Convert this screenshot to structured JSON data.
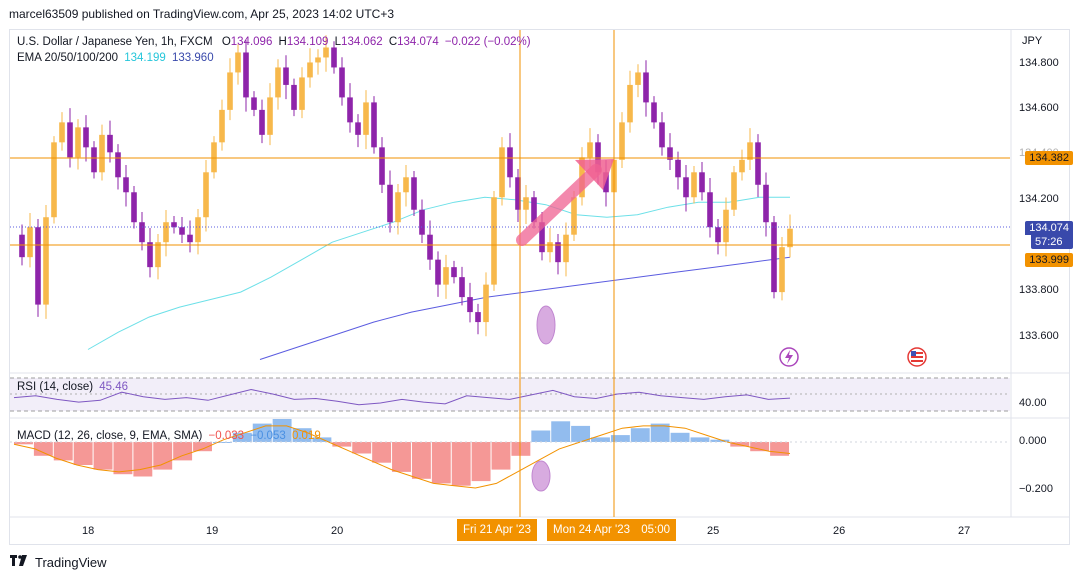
{
  "header": {
    "published_line": "marcel63509 published on TradingView.com, Apr 25, 2023 14:02 UTC+3"
  },
  "legend": {
    "symbol": "U.S. Dollar / Japanese Yen, 1h, FXCM",
    "open_label": "O",
    "open": "134.096",
    "high_label": "H",
    "high": "134.109",
    "low_label": "L",
    "low": "134.062",
    "close_label": "C",
    "close": "134.074",
    "change": "−0.022 (−0.02%)",
    "ema_label": "EMA 20/50/100/200",
    "ema_v1": "134.199",
    "ema_v2": "133.960",
    "rsi_label": "RSI (14, close)",
    "rsi_value": "45.46",
    "macd_label": "MACD (12, 26, close, 9, EMA, SMA)",
    "macd_v1": "−0.033",
    "macd_v2": "−0.053",
    "macd_v3": "0.019"
  },
  "price_axis": {
    "currency": "JPY",
    "ticks": [
      "134.800",
      "134.600",
      "134.400",
      "134.200",
      "133.800",
      "133.600"
    ],
    "last_price": "134.074",
    "countdown": "57:26",
    "level_upper": "134.382",
    "level_lower": "133.999"
  },
  "rsi_axis": {
    "ticks": [
      "40.00"
    ]
  },
  "macd_axis": {
    "ticks": [
      "0.000",
      "−0.200"
    ]
  },
  "time_axis": {
    "ticks": [
      "18",
      "19",
      "20",
      "25",
      "26",
      "27"
    ],
    "cursor_1": "Fri 21 Apr '23",
    "cursor_2": "Mon 24 Apr '23",
    "cursor_2_time": "05:00"
  },
  "footer": {
    "brand": "TradingView"
  },
  "colors": {
    "up": "#f7b84b",
    "down": "#8e24aa",
    "ema_a": "#6ce0e8",
    "ema_b": "#5b5ce0",
    "level": "#f29200",
    "arrow": "#f06292",
    "rsi": "#7e57c2",
    "macd_pos": "#4a90e2",
    "macd_neg": "#ef5350",
    "signal": "#f29200"
  },
  "chart_data": {
    "type": "candlestick",
    "title": "U.S. Dollar / Japanese Yen, 1h, FXCM",
    "ylim": [
      133.5,
      134.87
    ],
    "yticks": [
      133.6,
      133.8,
      134.2,
      134.4,
      134.6,
      134.8
    ],
    "horizontal_levels": [
      134.382,
      133.999
    ],
    "last_price": 134.074,
    "ohlc_path": [
      134.05,
      133.96,
      134.08,
      133.77,
      134.12,
      134.42,
      134.5,
      134.36,
      134.48,
      134.4,
      134.3,
      134.45,
      134.38,
      134.28,
      134.22,
      134.1,
      134.02,
      133.92,
      134.02,
      134.1,
      134.08,
      134.05,
      134.02,
      134.12,
      134.3,
      134.42,
      134.55,
      134.7,
      134.78,
      134.6,
      134.55,
      134.45,
      134.6,
      134.72,
      134.65,
      134.55,
      134.68,
      134.74,
      134.76,
      134.8,
      134.72,
      134.6,
      134.5,
      134.45,
      134.58,
      134.4,
      134.25,
      134.1,
      134.22,
      134.28,
      134.15,
      134.05,
      133.95,
      133.85,
      133.92,
      133.88,
      133.8,
      133.74,
      133.7,
      133.85,
      134.2,
      134.4,
      134.28,
      134.15,
      134.2,
      134.1,
      133.98,
      134.02,
      133.94,
      134.05,
      134.2,
      134.36,
      134.42,
      134.3,
      134.22,
      134.35,
      134.5,
      134.65,
      134.7,
      134.58,
      134.5,
      134.4,
      134.35,
      134.28,
      134.2,
      134.3,
      134.22,
      134.08,
      134.02,
      134.15,
      134.3,
      134.35,
      134.42,
      134.25,
      134.1,
      133.82,
      134.0,
      134.074
    ],
    "ema_short": [
      133.59,
      133.66,
      133.72,
      133.76,
      133.79,
      133.82,
      133.88,
      133.95,
      134.02,
      134.06,
      134.1,
      134.15,
      134.18,
      134.2,
      134.19,
      134.17,
      134.13,
      134.12,
      134.13,
      134.16,
      134.18,
      134.18,
      134.2,
      134.2
    ],
    "ema_long": [
      133.55,
      133.6,
      133.65,
      133.7,
      133.74,
      133.77,
      133.8,
      133.82,
      133.84,
      133.86,
      133.88,
      133.9,
      133.92,
      133.94,
      133.96
    ],
    "rsi": [
      46,
      48,
      44,
      41,
      43,
      52,
      47,
      44,
      46,
      43,
      49,
      55,
      50,
      44,
      45,
      42,
      38,
      40,
      44,
      41,
      39,
      48,
      46,
      44,
      49,
      54,
      47,
      45,
      50,
      52,
      48,
      46,
      44,
      47,
      49,
      44,
      45.46
    ],
    "macd_histogram": [
      -0.01,
      -0.06,
      -0.08,
      -0.1,
      -0.12,
      -0.14,
      -0.15,
      -0.12,
      -0.08,
      -0.04,
      0.0,
      0.04,
      0.08,
      0.1,
      0.06,
      0.02,
      -0.02,
      -0.05,
      -0.09,
      -0.13,
      -0.16,
      -0.18,
      -0.19,
      -0.17,
      -0.12,
      -0.06,
      0.05,
      0.09,
      0.07,
      0.02,
      0.03,
      0.06,
      0.08,
      0.04,
      0.02,
      0.01,
      -0.02,
      -0.04,
      -0.06
    ],
    "macd_signal": [
      -0.01,
      -0.03,
      -0.07,
      -0.1,
      -0.12,
      -0.13,
      -0.12,
      -0.1,
      -0.06,
      -0.03,
      0.01,
      0.04,
      0.07,
      0.07,
      0.04,
      0.0,
      -0.04,
      -0.08,
      -0.12,
      -0.15,
      -0.18,
      -0.19,
      -0.2,
      -0.18,
      -0.13,
      -0.08,
      -0.03,
      0.0,
      0.03,
      0.06,
      0.07,
      0.07,
      0.06,
      0.03,
      0.0,
      -0.02,
      -0.04,
      -0.05
    ]
  }
}
